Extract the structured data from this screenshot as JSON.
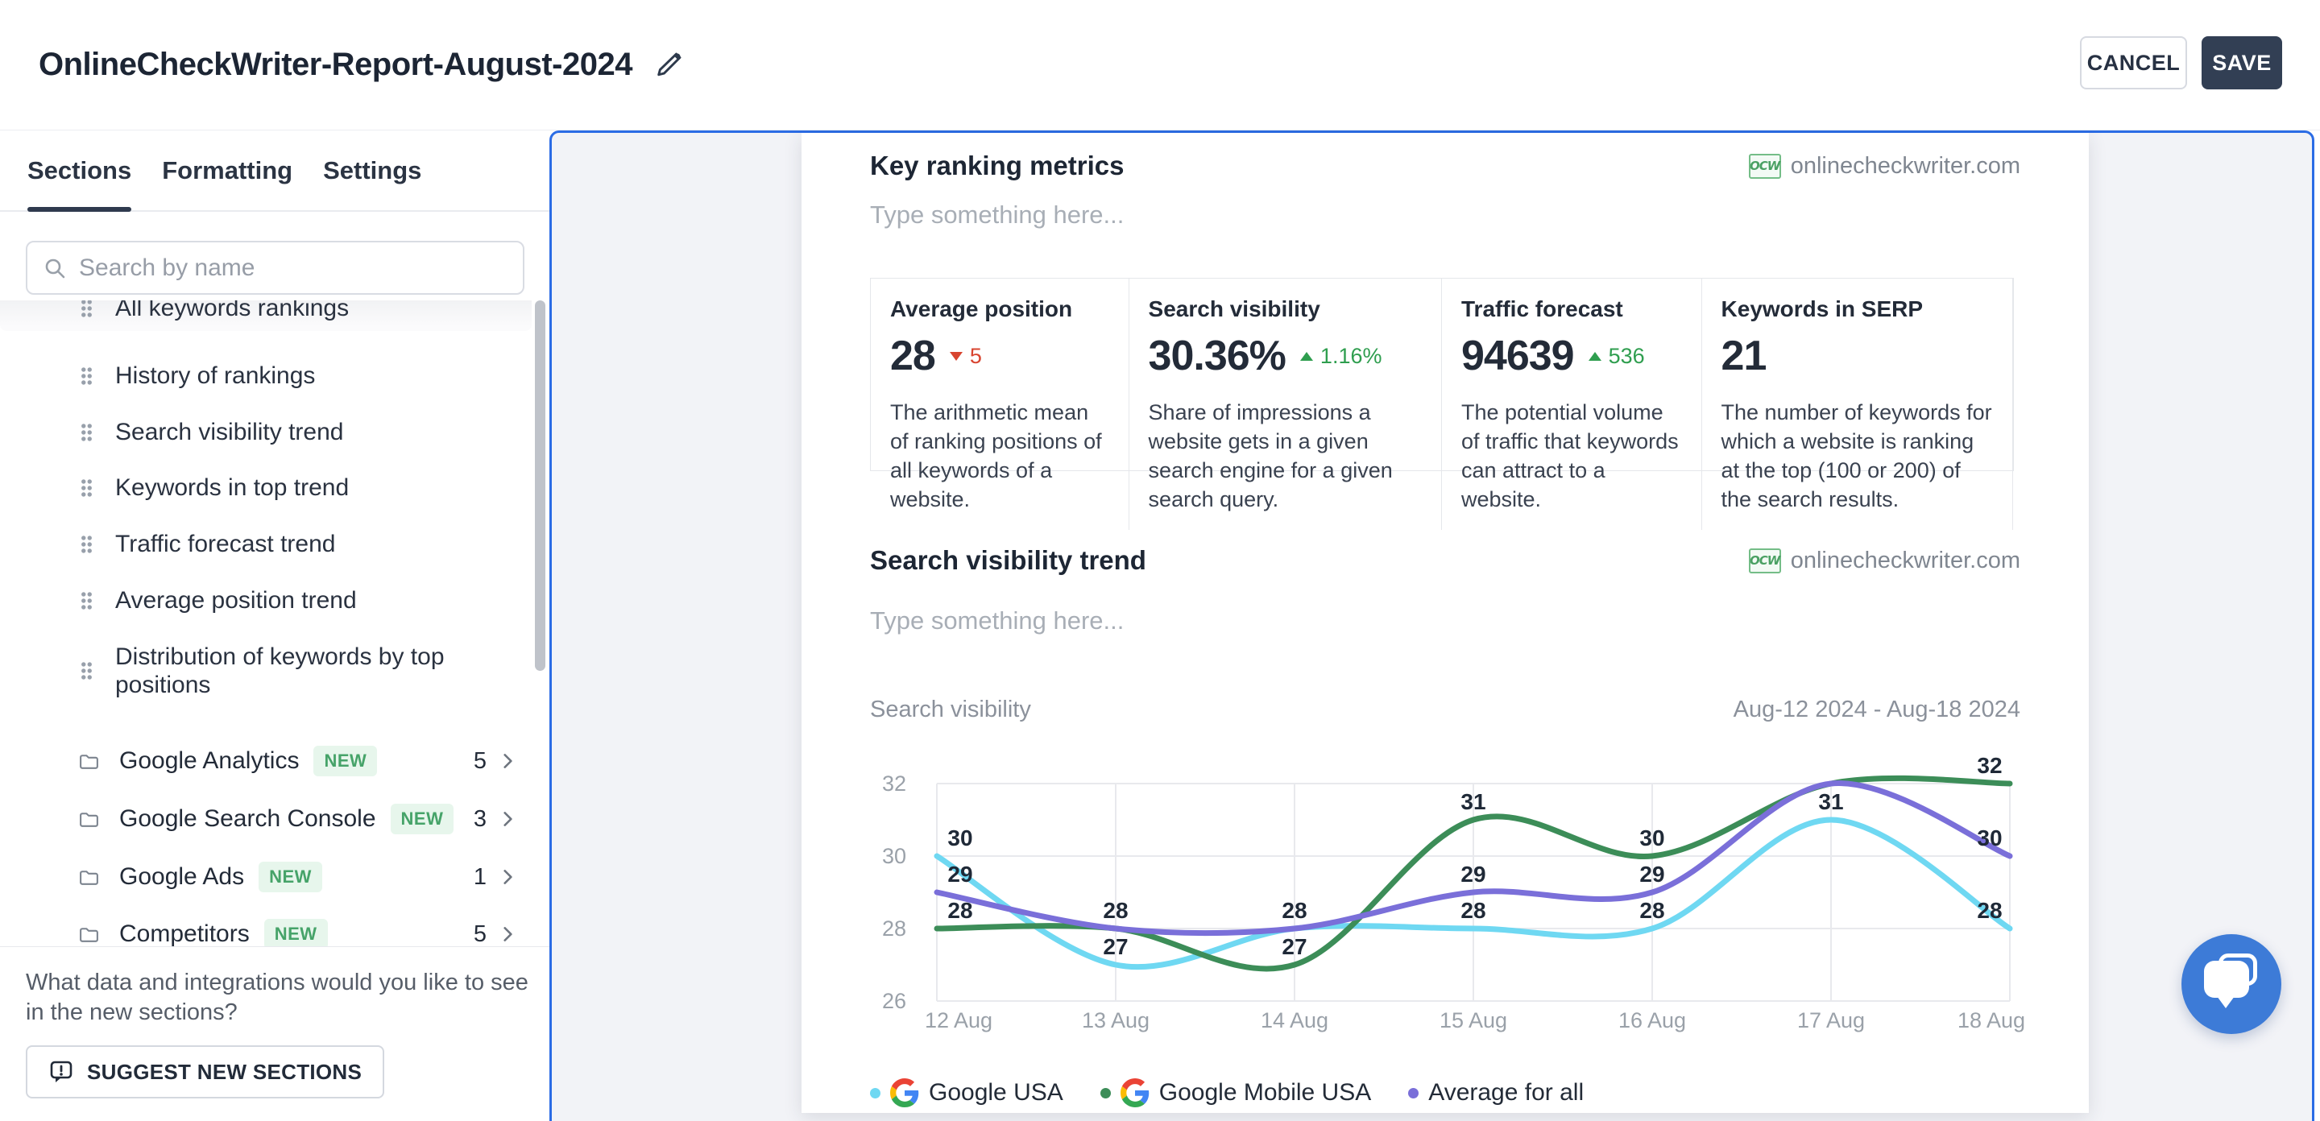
{
  "header": {
    "title": "OnlineCheckWriter-Report-August-2024",
    "cancel_label": "CANCEL",
    "save_label": "SAVE"
  },
  "sidebar": {
    "tabs": [
      {
        "label": "Sections",
        "active": true
      },
      {
        "label": "Formatting",
        "active": false
      },
      {
        "label": "Settings",
        "active": false
      }
    ],
    "search_placeholder": "Search by name",
    "items": [
      "All keywords rankings",
      "History of rankings",
      "Search visibility trend",
      "Keywords in top trend",
      "Traffic forecast trend",
      "Average position trend",
      "Distribution of keywords by top positions"
    ],
    "folders": [
      {
        "label": "Google Analytics",
        "badge": "NEW",
        "count": "5"
      },
      {
        "label": "Google Search Console",
        "badge": "NEW",
        "count": "3"
      },
      {
        "label": "Google Ads",
        "badge": "NEW",
        "count": "1"
      },
      {
        "label": "Competitors",
        "badge": "NEW",
        "count": "5"
      }
    ],
    "footer_question": "What data and integrations would you like to see in the new sections?",
    "suggest_button": "SUGGEST NEW SECTIONS"
  },
  "report": {
    "site": "onlinecheckwriter.com",
    "site_logo_text": "OCW",
    "sections": [
      {
        "title": "Key ranking metrics",
        "placeholder": "Type something here..."
      },
      {
        "title": "Search visibility trend",
        "placeholder": "Type something here..."
      }
    ],
    "metrics": [
      {
        "label": "Average position",
        "value": "28",
        "delta": "5",
        "direction": "down",
        "description": "The arithmetic mean of ranking positions of all keywords of a website."
      },
      {
        "label": "Search visibility",
        "value": "30.36%",
        "delta": "1.16%",
        "direction": "up",
        "description": "Share of impressions a website gets in a given search engine for a given search query."
      },
      {
        "label": "Traffic forecast",
        "value": "94639",
        "delta": "536",
        "direction": "up",
        "description": "The potential volume of traffic that keywords can attract to a website."
      },
      {
        "label": "Keywords in SERP",
        "value": "21",
        "delta": "",
        "direction": "none",
        "description": "The number of keywords for which a website is ranking at the top (100 or 200) of the search results."
      }
    ]
  },
  "chart_data": {
    "type": "line",
    "title": "Search visibility",
    "date_range": "Aug-12 2024 - Aug-18 2024",
    "x": [
      "12 Aug",
      "13 Aug",
      "14 Aug",
      "15 Aug",
      "16 Aug",
      "17 Aug",
      "18 Aug"
    ],
    "ylim": [
      26,
      32
    ],
    "yticks": [
      26,
      28,
      30,
      32
    ],
    "grid": true,
    "legend_position": "bottom",
    "series": [
      {
        "name": "Google USA",
        "color": "#6fd8f2",
        "values": [
          30,
          27,
          28,
          28,
          28,
          31,
          28
        ]
      },
      {
        "name": "Google Mobile USA",
        "color": "#3c8d58",
        "values": [
          28,
          28,
          27,
          31,
          30,
          32,
          32
        ]
      },
      {
        "name": "Average for all",
        "color": "#7a6fd9",
        "values": [
          29,
          28,
          28,
          29,
          29,
          32,
          30
        ]
      }
    ],
    "visible_point_labels": [
      [
        0,
        30
      ],
      [
        0,
        29
      ],
      [
        0,
        28
      ],
      [
        1,
        28
      ],
      [
        1,
        27
      ],
      [
        2,
        28
      ],
      [
        2,
        27
      ],
      [
        3,
        31
      ],
      [
        3,
        29
      ],
      [
        3,
        28
      ],
      [
        4,
        30
      ],
      [
        4,
        29
      ],
      [
        4,
        28
      ],
      [
        5,
        31
      ],
      [
        6,
        32
      ],
      [
        6,
        30
      ],
      [
        6,
        28
      ]
    ],
    "legend": [
      {
        "label": "Google USA",
        "dot": "#6fd8f2",
        "google_logo": true
      },
      {
        "label": "Google Mobile USA",
        "dot": "#3c8d58",
        "google_logo": true
      },
      {
        "label": "Average for all",
        "dot": "#7a6fd9",
        "google_logo": false
      }
    ]
  }
}
